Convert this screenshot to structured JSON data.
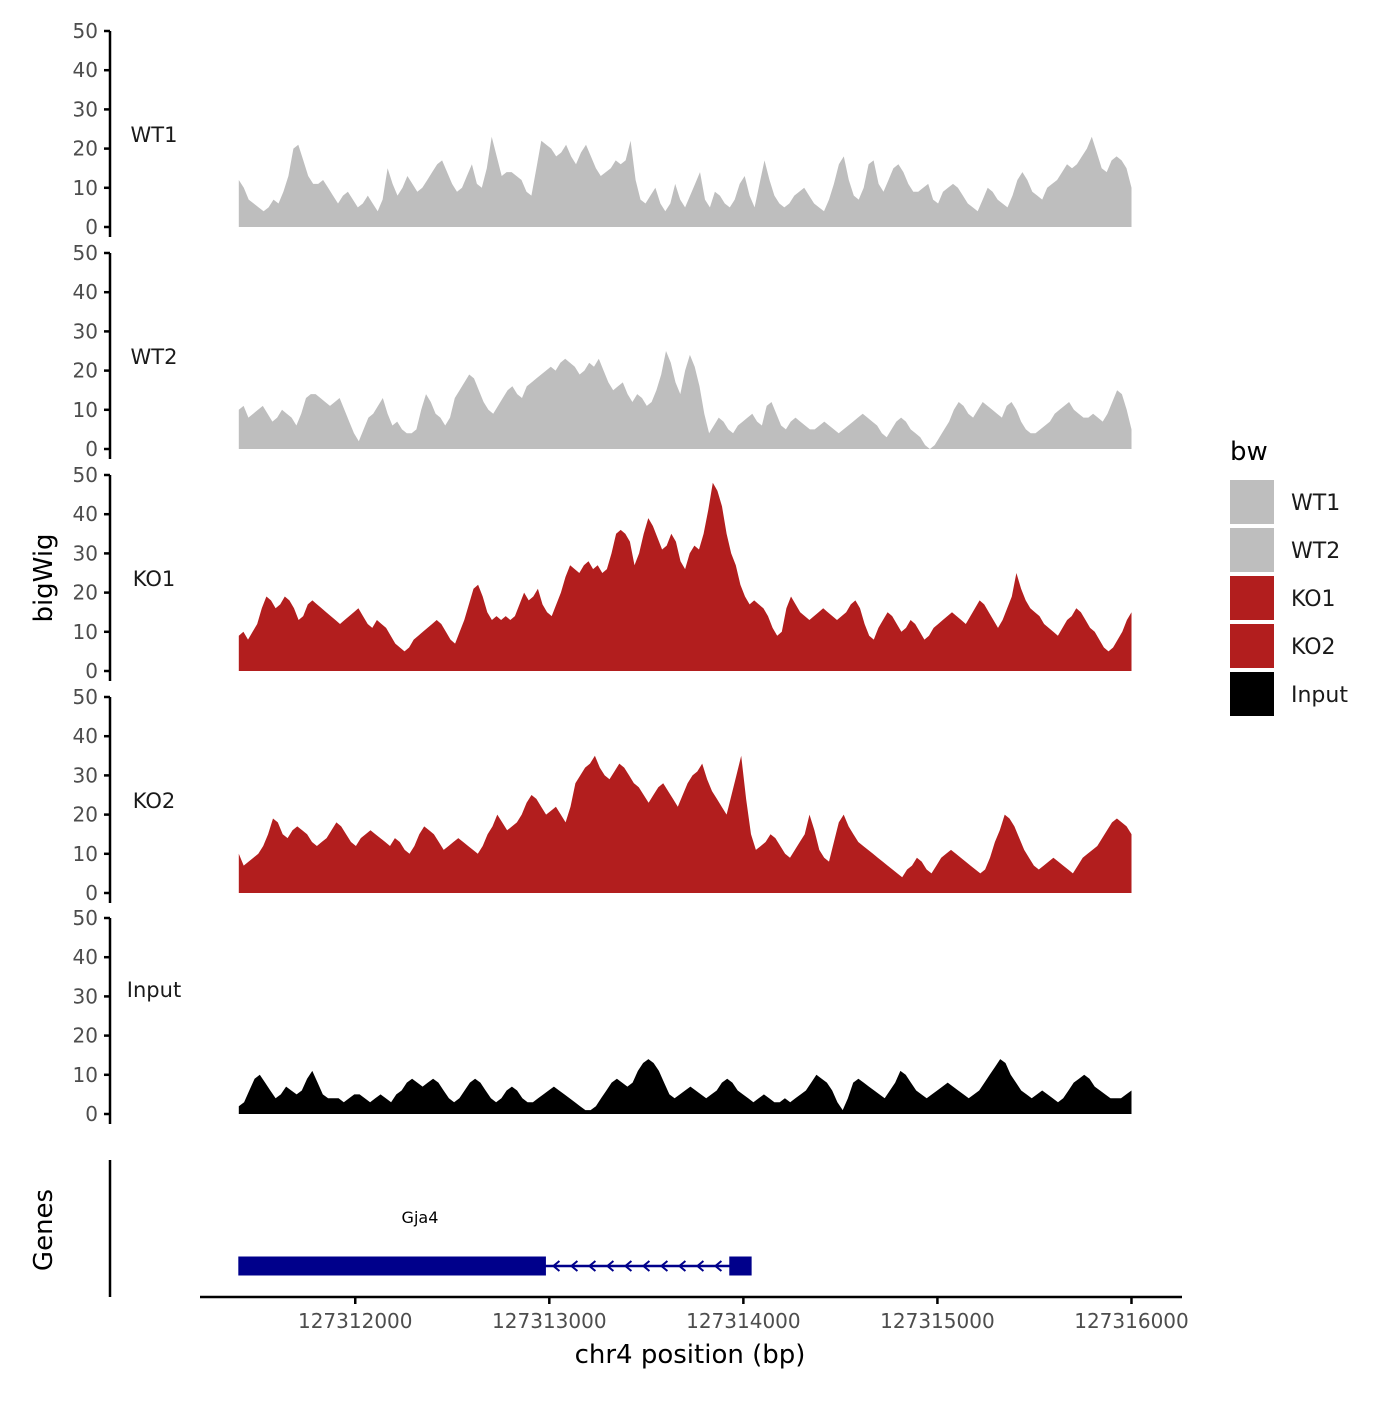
{
  "chart_data": {
    "type": "area",
    "title": "",
    "ylabel": "bigWig",
    "xlabel": "chr4 position (bp)",
    "genes_label": "Genes",
    "ylim": [
      0,
      50
    ],
    "y_ticks": [
      0,
      10,
      20,
      30,
      40,
      50
    ],
    "xlim": [
      127311200,
      127316250
    ],
    "x_ticks": [
      127312000,
      127313000,
      127314000,
      127315000,
      127316000
    ],
    "x_tick_labels": [
      "127312000",
      "127313000",
      "127314000",
      "127315000",
      "127316000"
    ],
    "x_start": 127311400,
    "x_end": 127316000,
    "legend": {
      "title": "bw",
      "position": "right",
      "entries": [
        {
          "label": "WT1",
          "color": "#bebebe"
        },
        {
          "label": "WT2",
          "color": "#bebebe"
        },
        {
          "label": "KO1",
          "color": "#b21e1e"
        },
        {
          "label": "KO2",
          "color": "#b21e1e"
        },
        {
          "label": "Input",
          "color": "#000000"
        }
      ]
    },
    "series": [
      {
        "name": "WT1",
        "color": "#bebebe",
        "values": [
          12,
          10,
          7,
          6,
          5,
          4,
          5,
          7,
          6,
          9,
          13,
          20,
          21,
          17,
          13,
          11,
          11,
          12,
          10,
          8,
          6,
          8,
          9,
          7,
          5,
          6,
          8,
          6,
          4,
          7,
          15,
          11,
          8,
          10,
          13,
          11,
          9,
          10,
          12,
          14,
          16,
          17,
          14,
          11,
          9,
          10,
          13,
          16,
          11,
          10,
          15,
          23,
          18,
          13,
          14,
          14,
          13,
          12,
          9,
          8,
          15,
          22,
          21,
          20,
          18,
          19,
          21,
          18,
          16,
          19,
          21,
          18,
          15,
          13,
          14,
          15,
          17,
          16,
          17,
          22,
          12,
          7,
          6,
          8,
          10,
          6,
          4,
          6,
          11,
          7,
          5,
          8,
          11,
          14,
          7,
          5,
          9,
          8,
          6,
          5,
          7,
          11,
          13,
          8,
          5,
          11,
          17,
          12,
          8,
          6,
          5,
          6,
          8,
          9,
          10,
          8,
          6,
          5,
          4,
          7,
          11,
          16,
          18,
          12,
          8,
          7,
          10,
          16,
          17,
          11,
          9,
          12,
          15,
          16,
          14,
          11,
          9,
          9,
          10,
          11,
          7,
          6,
          9,
          10,
          11,
          10,
          8,
          6,
          5,
          4,
          7,
          10,
          9,
          7,
          6,
          5,
          8,
          12,
          14,
          12,
          9,
          8,
          7,
          10,
          11,
          12,
          14,
          16,
          15,
          16,
          18,
          20,
          23,
          19,
          15,
          14,
          17,
          18,
          17,
          15,
          10
        ]
      },
      {
        "name": "WT2",
        "color": "#bebebe",
        "values": [
          10,
          11,
          8,
          9,
          10,
          11,
          9,
          7,
          8,
          10,
          9,
          8,
          6,
          9,
          13,
          14,
          14,
          13,
          12,
          11,
          12,
          13,
          10,
          7,
          4,
          2,
          5,
          8,
          9,
          11,
          13,
          9,
          6,
          7,
          5,
          4,
          4,
          5,
          10,
          14,
          12,
          9,
          8,
          6,
          8,
          13,
          15,
          17,
          19,
          18,
          15,
          12,
          10,
          9,
          11,
          13,
          15,
          16,
          14,
          13,
          16,
          17,
          18,
          19,
          20,
          21,
          20,
          22,
          23,
          22,
          21,
          19,
          20,
          22,
          21,
          23,
          20,
          17,
          15,
          16,
          17,
          14,
          12,
          14,
          13,
          11,
          12,
          15,
          19,
          25,
          22,
          17,
          14,
          20,
          24,
          21,
          16,
          9,
          4,
          6,
          8,
          7,
          5,
          4,
          6,
          7,
          8,
          9,
          7,
          6,
          11,
          12,
          9,
          6,
          5,
          7,
          8,
          7,
          6,
          5,
          5,
          6,
          7,
          6,
          5,
          4,
          5,
          6,
          7,
          8,
          9,
          8,
          7,
          6,
          4,
          3,
          5,
          7,
          8,
          7,
          5,
          4,
          3,
          1,
          0,
          1,
          3,
          5,
          7,
          10,
          12,
          11,
          9,
          8,
          10,
          12,
          11,
          10,
          9,
          8,
          11,
          12,
          10,
          7,
          5,
          4,
          4,
          5,
          6,
          7,
          9,
          10,
          11,
          12,
          10,
          9,
          8,
          8,
          9,
          8,
          7,
          9,
          12,
          15,
          14,
          10,
          5
        ]
      },
      {
        "name": "KO1",
        "color": "#b21e1e",
        "values": [
          9,
          10,
          8,
          10,
          12,
          16,
          19,
          18,
          16,
          17,
          19,
          18,
          16,
          13,
          14,
          17,
          18,
          17,
          16,
          15,
          14,
          13,
          12,
          13,
          14,
          15,
          16,
          14,
          12,
          11,
          13,
          12,
          11,
          9,
          7,
          6,
          5,
          6,
          8,
          9,
          10,
          11,
          12,
          13,
          12,
          10,
          8,
          7,
          10,
          13,
          17,
          21,
          22,
          19,
          15,
          13,
          14,
          13,
          14,
          13,
          14,
          17,
          20,
          18,
          19,
          21,
          17,
          15,
          14,
          17,
          20,
          24,
          27,
          26,
          25,
          27,
          28,
          26,
          27,
          25,
          26,
          30,
          35,
          36,
          35,
          33,
          27,
          30,
          35,
          39,
          37,
          34,
          31,
          32,
          35,
          33,
          28,
          26,
          30,
          32,
          31,
          35,
          41,
          48,
          46,
          42,
          35,
          30,
          27,
          22,
          19,
          17,
          18,
          17,
          16,
          14,
          11,
          9,
          10,
          16,
          19,
          17,
          15,
          14,
          13,
          14,
          15,
          16,
          15,
          14,
          13,
          14,
          15,
          17,
          18,
          16,
          12,
          9,
          8,
          11,
          13,
          15,
          14,
          12,
          10,
          11,
          13,
          12,
          10,
          8,
          9,
          11,
          12,
          13,
          14,
          15,
          14,
          13,
          12,
          14,
          16,
          18,
          17,
          15,
          13,
          11,
          13,
          16,
          19,
          25,
          21,
          18,
          16,
          15,
          14,
          12,
          11,
          10,
          9,
          11,
          13,
          14,
          16,
          15,
          13,
          11,
          10,
          8,
          6,
          5,
          6,
          8,
          10,
          13,
          15
        ]
      },
      {
        "name": "KO2",
        "color": "#b21e1e",
        "values": [
          10,
          7,
          8,
          9,
          10,
          12,
          15,
          19,
          18,
          15,
          14,
          16,
          17,
          16,
          15,
          13,
          12,
          13,
          14,
          16,
          18,
          17,
          15,
          13,
          12,
          14,
          15,
          16,
          15,
          14,
          13,
          12,
          14,
          13,
          11,
          10,
          12,
          15,
          17,
          16,
          15,
          13,
          11,
          12,
          13,
          14,
          13,
          12,
          11,
          10,
          12,
          15,
          17,
          20,
          18,
          16,
          17,
          18,
          20,
          23,
          25,
          24,
          22,
          20,
          21,
          22,
          20,
          18,
          22,
          28,
          30,
          32,
          33,
          35,
          32,
          30,
          29,
          31,
          33,
          32,
          30,
          28,
          27,
          25,
          23,
          25,
          27,
          28,
          26,
          24,
          22,
          25,
          28,
          30,
          31,
          33,
          29,
          26,
          24,
          22,
          20,
          25,
          30,
          35,
          24,
          15,
          11,
          12,
          13,
          15,
          14,
          12,
          10,
          9,
          11,
          13,
          15,
          20,
          16,
          11,
          9,
          8,
          13,
          18,
          20,
          17,
          15,
          13,
          12,
          11,
          10,
          9,
          8,
          7,
          6,
          5,
          4,
          6,
          7,
          9,
          8,
          6,
          5,
          7,
          9,
          10,
          11,
          10,
          9,
          8,
          7,
          6,
          5,
          6,
          9,
          13,
          16,
          20,
          19,
          17,
          14,
          11,
          9,
          7,
          6,
          7,
          8,
          9,
          8,
          7,
          6,
          5,
          7,
          9,
          10,
          11,
          12,
          14,
          16,
          18,
          19,
          18,
          17,
          15
        ]
      },
      {
        "name": "Input",
        "color": "#000000",
        "values": [
          2,
          3,
          6,
          9,
          10,
          8,
          6,
          4,
          5,
          7,
          6,
          5,
          6,
          9,
          11,
          8,
          5,
          4,
          4,
          4,
          3,
          4,
          5,
          5,
          4,
          3,
          4,
          5,
          4,
          3,
          5,
          6,
          8,
          9,
          8,
          7,
          8,
          9,
          8,
          6,
          4,
          3,
          4,
          6,
          8,
          9,
          8,
          6,
          4,
          3,
          4,
          6,
          7,
          6,
          4,
          3,
          3,
          4,
          5,
          6,
          7,
          6,
          5,
          4,
          3,
          2,
          1,
          1,
          2,
          4,
          6,
          8,
          9,
          8,
          7,
          8,
          11,
          13,
          14,
          13,
          11,
          8,
          5,
          4,
          5,
          6,
          7,
          6,
          5,
          4,
          5,
          6,
          8,
          9,
          8,
          6,
          5,
          4,
          3,
          4,
          5,
          4,
          3,
          3,
          4,
          3,
          4,
          5,
          6,
          8,
          10,
          9,
          8,
          6,
          3,
          1,
          4,
          8,
          9,
          8,
          7,
          6,
          5,
          4,
          6,
          8,
          11,
          10,
          8,
          6,
          5,
          4,
          5,
          6,
          7,
          8,
          7,
          6,
          5,
          4,
          5,
          6,
          8,
          10,
          12,
          14,
          13,
          10,
          8,
          6,
          5,
          4,
          5,
          6,
          5,
          4,
          3,
          4,
          6,
          8,
          9,
          10,
          9,
          7,
          6,
          5,
          4,
          4,
          4,
          5,
          6
        ]
      }
    ],
    "genes": [
      {
        "name": "Gja4",
        "strand": "-",
        "start": 127311400,
        "end": 127314040,
        "exons": [
          [
            127311400,
            127312980
          ],
          [
            127313930,
            127314040
          ]
        ]
      }
    ]
  }
}
